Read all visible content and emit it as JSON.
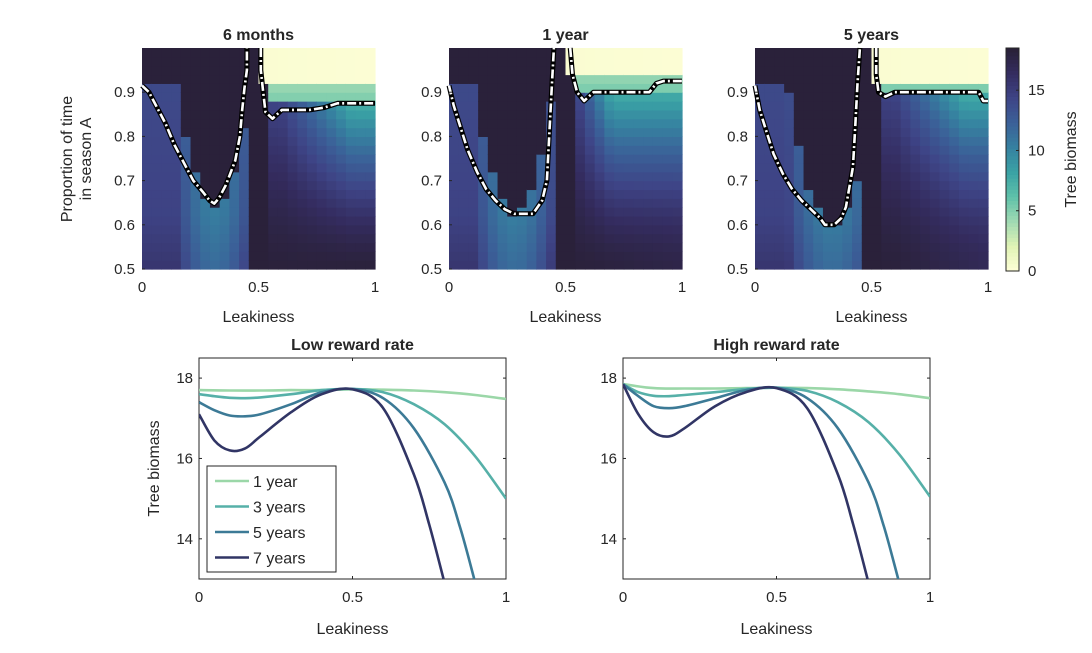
{
  "chart_data": [
    {
      "type": "heatmap",
      "title": "6 months",
      "xlabel": "Leakiness",
      "ylabel": "Proportion of time in season A",
      "xlim": [
        0,
        1
      ],
      "ylim": [
        0.5,
        1.0
      ],
      "xticks": [
        "0",
        "0.5",
        "1"
      ],
      "yticks": [
        "0.5",
        "0.6",
        "0.7",
        "0.8",
        "0.9"
      ],
      "grid_x": 24,
      "grid_y": 25,
      "params": {
        "t": 0.0,
        "thr": 0.92,
        "dipC": 0.31,
        "dipD": 0.645,
        "dipW": 0.16,
        "crest": 0.875,
        "crestOn": 0.6,
        "crestFull": 0.9,
        "rightDepth": 0.0,
        "zeroL": 0.5
      },
      "contour_left": [
        [
          0.0,
          0.915
        ],
        [
          0.03,
          0.9
        ],
        [
          0.06,
          0.87
        ],
        [
          0.1,
          0.83
        ],
        [
          0.14,
          0.78
        ],
        [
          0.18,
          0.74
        ],
        [
          0.22,
          0.7
        ],
        [
          0.26,
          0.675
        ],
        [
          0.29,
          0.655
        ],
        [
          0.31,
          0.648
        ],
        [
          0.33,
          0.66
        ],
        [
          0.36,
          0.69
        ],
        [
          0.4,
          0.745
        ],
        [
          0.42,
          0.8
        ],
        [
          0.43,
          0.86
        ],
        [
          0.44,
          0.91
        ],
        [
          0.45,
          0.95
        ],
        [
          0.45,
          1.0
        ]
      ],
      "contour_right": [
        [
          0.51,
          1.0
        ],
        [
          0.51,
          0.95
        ],
        [
          0.52,
          0.9
        ],
        [
          0.53,
          0.855
        ],
        [
          0.56,
          0.84
        ],
        [
          0.6,
          0.86
        ],
        [
          0.66,
          0.86
        ],
        [
          0.72,
          0.86
        ],
        [
          0.78,
          0.865
        ],
        [
          0.84,
          0.875
        ],
        [
          0.9,
          0.875
        ],
        [
          0.96,
          0.875
        ],
        [
          1.0,
          0.875
        ]
      ]
    },
    {
      "type": "heatmap",
      "title": "1 year",
      "xlabel": "Leakiness",
      "ylabel": "",
      "xlim": [
        0,
        1
      ],
      "ylim": [
        0.5,
        1.0
      ],
      "xticks": [
        "0",
        "0.5",
        "1"
      ],
      "yticks": [
        "0.5",
        "0.6",
        "0.7",
        "0.8",
        "0.9"
      ],
      "grid_x": 24,
      "grid_y": 25,
      "params": {
        "t": 0.5,
        "thr": 0.93,
        "dipC": 0.28,
        "dipD": 0.625,
        "dipW": 0.17,
        "crest": 0.9,
        "crestOn": 0.55,
        "crestFull": 0.7,
        "rightDepth": 0.45,
        "zeroL": 0.5
      },
      "contour_left": [
        [
          0.0,
          0.915
        ],
        [
          0.02,
          0.87
        ],
        [
          0.05,
          0.82
        ],
        [
          0.08,
          0.77
        ],
        [
          0.12,
          0.72
        ],
        [
          0.16,
          0.68
        ],
        [
          0.2,
          0.655
        ],
        [
          0.24,
          0.635
        ],
        [
          0.28,
          0.625
        ],
        [
          0.3,
          0.625
        ],
        [
          0.32,
          0.625
        ],
        [
          0.36,
          0.625
        ],
        [
          0.4,
          0.655
        ],
        [
          0.42,
          0.7
        ],
        [
          0.43,
          0.8
        ],
        [
          0.44,
          0.9
        ],
        [
          0.45,
          1.0
        ]
      ],
      "contour_right": [
        [
          0.52,
          1.0
        ],
        [
          0.53,
          0.94
        ],
        [
          0.55,
          0.9
        ],
        [
          0.58,
          0.88
        ],
        [
          0.62,
          0.9
        ],
        [
          0.68,
          0.9
        ],
        [
          0.74,
          0.9
        ],
        [
          0.8,
          0.9
        ],
        [
          0.86,
          0.9
        ],
        [
          0.89,
          0.92
        ],
        [
          0.92,
          0.925
        ],
        [
          1.0,
          0.925
        ]
      ]
    },
    {
      "type": "heatmap",
      "title": "5 years",
      "xlabel": "Leakiness",
      "ylabel": "",
      "xlim": [
        0,
        1
      ],
      "ylim": [
        0.5,
        1.0
      ],
      "xticks": [
        "0",
        "0.5",
        "1"
      ],
      "yticks": [
        "0.5",
        "0.6",
        "0.7",
        "0.8",
        "0.9"
      ],
      "grid_x": 24,
      "grid_y": 25,
      "params": {
        "t": 1.0,
        "thr": 0.92,
        "dipC": 0.33,
        "dipD": 0.6,
        "dipW": 0.19,
        "crest": 0.9,
        "crestOn": 0.6,
        "crestFull": 0.9,
        "rightDepth": 1.0,
        "zeroL": 0.5
      },
      "contour_left": [
        [
          0.0,
          0.915
        ],
        [
          0.02,
          0.86
        ],
        [
          0.05,
          0.81
        ],
        [
          0.08,
          0.76
        ],
        [
          0.12,
          0.715
        ],
        [
          0.16,
          0.68
        ],
        [
          0.2,
          0.655
        ],
        [
          0.24,
          0.635
        ],
        [
          0.28,
          0.615
        ],
        [
          0.3,
          0.6
        ],
        [
          0.34,
          0.6
        ],
        [
          0.37,
          0.615
        ],
        [
          0.39,
          0.64
        ],
        [
          0.42,
          0.73
        ],
        [
          0.43,
          0.82
        ],
        [
          0.44,
          0.92
        ],
        [
          0.45,
          1.0
        ]
      ],
      "contour_right": [
        [
          0.52,
          1.0
        ],
        [
          0.52,
          0.94
        ],
        [
          0.53,
          0.9
        ],
        [
          0.56,
          0.89
        ],
        [
          0.6,
          0.9
        ],
        [
          0.66,
          0.9
        ],
        [
          0.72,
          0.9
        ],
        [
          0.78,
          0.9
        ],
        [
          0.84,
          0.9
        ],
        [
          0.9,
          0.9
        ],
        [
          0.96,
          0.9
        ],
        [
          0.98,
          0.88
        ],
        [
          1.0,
          0.88
        ]
      ]
    },
    {
      "type": "line",
      "title": "Low reward rate",
      "xlabel": "Leakiness",
      "ylabel": "Tree biomass",
      "xlim": [
        0,
        1
      ],
      "ylim": [
        13,
        18.5
      ],
      "xticks": [
        "0",
        "0.5",
        "1"
      ],
      "yticks": [
        "14",
        "16",
        "18"
      ],
      "series": [
        {
          "name": "1 year",
          "color": "#9bd7a8",
          "x": [
            0,
            0.1,
            0.2,
            0.3,
            0.4,
            0.5,
            0.6,
            0.7,
            0.8,
            0.9,
            1.0
          ],
          "y": [
            17.7,
            17.69,
            17.69,
            17.7,
            17.7,
            17.72,
            17.71,
            17.69,
            17.65,
            17.58,
            17.48
          ]
        },
        {
          "name": "3 years",
          "color": "#56b0a8",
          "x": [
            0,
            0.05,
            0.1,
            0.15,
            0.2,
            0.3,
            0.4,
            0.5,
            0.6,
            0.7,
            0.8,
            0.9,
            1.0
          ],
          "y": [
            17.6,
            17.55,
            17.51,
            17.5,
            17.52,
            17.6,
            17.7,
            17.73,
            17.65,
            17.35,
            16.85,
            16.05,
            15.0
          ]
        },
        {
          "name": "5 years",
          "color": "#3c7a96",
          "x": [
            0,
            0.05,
            0.1,
            0.15,
            0.2,
            0.3,
            0.4,
            0.5,
            0.6,
            0.7,
            0.8,
            0.85,
            0.9
          ],
          "y": [
            17.4,
            17.2,
            17.07,
            17.05,
            17.1,
            17.35,
            17.65,
            17.73,
            17.5,
            16.75,
            15.4,
            14.3,
            12.9
          ]
        },
        {
          "name": "7 years",
          "color": "#313565",
          "x": [
            0,
            0.05,
            0.1,
            0.15,
            0.2,
            0.3,
            0.4,
            0.5,
            0.6,
            0.7,
            0.75,
            0.8
          ],
          "y": [
            17.1,
            16.45,
            16.2,
            16.25,
            16.55,
            17.15,
            17.6,
            17.72,
            17.25,
            15.6,
            14.35,
            12.9
          ]
        }
      ],
      "legend": {
        "location": "bottom-left",
        "entries": [
          "1 year",
          "3 years",
          "5 years",
          "7 years"
        ]
      }
    },
    {
      "type": "line",
      "title": "High reward rate",
      "xlabel": "Leakiness",
      "ylabel": "",
      "xlim": [
        0,
        1
      ],
      "ylim": [
        13,
        18.5
      ],
      "xticks": [
        "0",
        "0.5",
        "1"
      ],
      "yticks": [
        "14",
        "16",
        "18"
      ],
      "series": [
        {
          "name": "1 year",
          "color": "#9bd7a8",
          "x": [
            0,
            0.1,
            0.2,
            0.3,
            0.4,
            0.5,
            0.6,
            0.7,
            0.8,
            0.9,
            1.0
          ],
          "y": [
            17.85,
            17.75,
            17.74,
            17.74,
            17.75,
            17.76,
            17.75,
            17.72,
            17.67,
            17.6,
            17.5
          ]
        },
        {
          "name": "3 years",
          "color": "#56b0a8",
          "x": [
            0,
            0.05,
            0.1,
            0.15,
            0.2,
            0.3,
            0.4,
            0.5,
            0.6,
            0.7,
            0.8,
            0.9,
            1.0
          ],
          "y": [
            17.85,
            17.65,
            17.56,
            17.55,
            17.58,
            17.65,
            17.73,
            17.76,
            17.68,
            17.4,
            16.9,
            16.1,
            15.05
          ]
        },
        {
          "name": "5 years",
          "color": "#3c7a96",
          "x": [
            0,
            0.05,
            0.1,
            0.15,
            0.2,
            0.3,
            0.4,
            0.5,
            0.6,
            0.7,
            0.8,
            0.85,
            0.9
          ],
          "y": [
            17.85,
            17.55,
            17.3,
            17.25,
            17.3,
            17.5,
            17.7,
            17.76,
            17.5,
            16.75,
            15.4,
            14.3,
            12.9
          ]
        },
        {
          "name": "7 years",
          "color": "#313565",
          "x": [
            0,
            0.05,
            0.1,
            0.15,
            0.2,
            0.3,
            0.4,
            0.5,
            0.6,
            0.7,
            0.75,
            0.8
          ],
          "y": [
            17.85,
            17.1,
            16.65,
            16.55,
            16.75,
            17.3,
            17.65,
            17.75,
            17.25,
            15.6,
            14.35,
            12.9
          ]
        }
      ]
    }
  ],
  "colorbar": {
    "label": "Tree biomass",
    "range": [
      0,
      18.5
    ],
    "ticks": [
      "0",
      "5",
      "10",
      "15"
    ],
    "tick_values": [
      0,
      5,
      10,
      15
    ],
    "colormap": [
      "#fefed7",
      "#e1f3b5",
      "#a1dab3",
      "#5fc1a9",
      "#3aa2a5",
      "#3681a0",
      "#3b6098",
      "#3e4486",
      "#342c5f",
      "#292036"
    ]
  }
}
